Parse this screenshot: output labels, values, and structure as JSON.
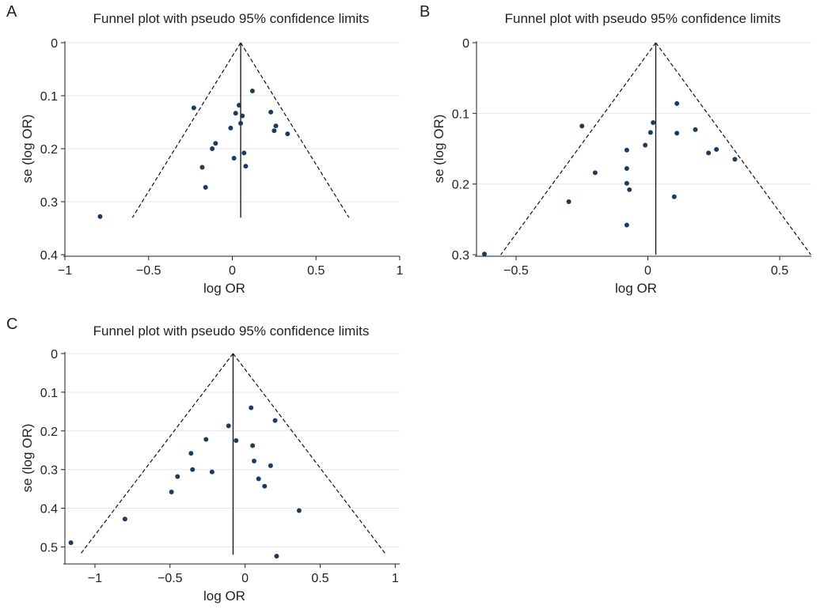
{
  "chart_data": [
    {
      "panel": "A",
      "type": "scatter",
      "title": "Funnel plot with pseudo 95% confidence limits",
      "xlabel": "log OR",
      "ylabel": "se (log OR)",
      "xlim": [
        -1,
        1
      ],
      "ylim": [
        0,
        0.4
      ],
      "yreversed": true,
      "xticks": [
        -1,
        -0.5,
        0,
        0.5,
        1
      ],
      "xtick_labels": [
        "−1",
        "−0.5",
        "0",
        "0.5",
        "1"
      ],
      "yticks": [
        0,
        0.1,
        0.2,
        0.3,
        0.4
      ],
      "ytick_labels": [
        "0",
        "0.1",
        "0.2",
        "0.3",
        "0.4"
      ],
      "grid": true,
      "pooled_estimate": 0.05,
      "se_max": 0.33,
      "points": [
        {
          "x": 0.12,
          "y": 0.091
        },
        {
          "x": -0.23,
          "y": 0.123
        },
        {
          "x": 0.04,
          "y": 0.118
        },
        {
          "x": 0.02,
          "y": 0.133
        },
        {
          "x": 0.23,
          "y": 0.131
        },
        {
          "x": 0.06,
          "y": 0.138
        },
        {
          "x": 0.05,
          "y": 0.152
        },
        {
          "x": 0.26,
          "y": 0.157
        },
        {
          "x": -0.01,
          "y": 0.161
        },
        {
          "x": 0.25,
          "y": 0.166
        },
        {
          "x": 0.33,
          "y": 0.172
        },
        {
          "x": -0.1,
          "y": 0.19
        },
        {
          "x": -0.12,
          "y": 0.2
        },
        {
          "x": 0.07,
          "y": 0.208
        },
        {
          "x": 0.01,
          "y": 0.218
        },
        {
          "x": -0.18,
          "y": 0.235
        },
        {
          "x": 0.08,
          "y": 0.233
        },
        {
          "x": -0.16,
          "y": 0.273
        },
        {
          "x": -0.79,
          "y": 0.328
        }
      ]
    },
    {
      "panel": "B",
      "type": "scatter",
      "title": "Funnel plot with pseudo 95% confidence limits",
      "xlabel": "log OR",
      "ylabel": "se (log OR)",
      "xlim": [
        -0.65,
        0.62
      ],
      "ylim": [
        0,
        0.3
      ],
      "yreversed": true,
      "xticks": [
        -0.5,
        0,
        0.5
      ],
      "xtick_labels": [
        "−0.5",
        "0",
        "0.5"
      ],
      "yticks": [
        0,
        0.1,
        0.2,
        0.3
      ],
      "ytick_labels": [
        "0",
        "0.1",
        "0.2",
        "0.3"
      ],
      "grid": true,
      "pooled_estimate": 0.03,
      "se_max": 0.3,
      "points": [
        {
          "x": 0.11,
          "y": 0.086
        },
        {
          "x": 0.02,
          "y": 0.113
        },
        {
          "x": -0.25,
          "y": 0.118
        },
        {
          "x": 0.18,
          "y": 0.123
        },
        {
          "x": 0.01,
          "y": 0.127
        },
        {
          "x": 0.11,
          "y": 0.128
        },
        {
          "x": -0.01,
          "y": 0.145
        },
        {
          "x": -0.08,
          "y": 0.152
        },
        {
          "x": 0.26,
          "y": 0.151
        },
        {
          "x": 0.23,
          "y": 0.156
        },
        {
          "x": 0.33,
          "y": 0.165
        },
        {
          "x": -0.08,
          "y": 0.178
        },
        {
          "x": -0.2,
          "y": 0.184
        },
        {
          "x": -0.08,
          "y": 0.199
        },
        {
          "x": -0.07,
          "y": 0.208
        },
        {
          "x": 0.1,
          "y": 0.218
        },
        {
          "x": -0.3,
          "y": 0.225
        },
        {
          "x": -0.08,
          "y": 0.258
        },
        {
          "x": -0.62,
          "y": 0.299
        }
      ]
    },
    {
      "panel": "C",
      "type": "scatter",
      "title": "Funnel plot with pseudo 95% confidence limits",
      "xlabel": "log OR",
      "ylabel": "se (log OR)",
      "xlim": [
        -1.2,
        1.03
      ],
      "ylim": [
        0,
        0.54
      ],
      "yreversed": true,
      "xticks": [
        -1,
        -0.5,
        0,
        0.5,
        1
      ],
      "xtick_labels": [
        "−1",
        "−0.5",
        "0",
        "0.5",
        "1"
      ],
      "yticks": [
        0,
        0.1,
        0.2,
        0.3,
        0.4,
        0.5
      ],
      "ytick_labels": [
        "0",
        "0.1",
        "0.2",
        "0.3",
        "0.4",
        "0.5"
      ],
      "grid": true,
      "pooled_estimate": -0.08,
      "se_max": 0.52,
      "points": [
        {
          "x": 0.04,
          "y": 0.14
        },
        {
          "x": 0.2,
          "y": 0.173
        },
        {
          "x": -0.11,
          "y": 0.187
        },
        {
          "x": -0.26,
          "y": 0.222
        },
        {
          "x": -0.06,
          "y": 0.225
        },
        {
          "x": 0.05,
          "y": 0.238
        },
        {
          "x": -0.36,
          "y": 0.258
        },
        {
          "x": 0.06,
          "y": 0.278
        },
        {
          "x": 0.17,
          "y": 0.29
        },
        {
          "x": -0.35,
          "y": 0.3
        },
        {
          "x": -0.22,
          "y": 0.306
        },
        {
          "x": -0.45,
          "y": 0.318
        },
        {
          "x": 0.09,
          "y": 0.324
        },
        {
          "x": 0.13,
          "y": 0.343
        },
        {
          "x": -0.49,
          "y": 0.358
        },
        {
          "x": 0.36,
          "y": 0.406
        },
        {
          "x": -0.8,
          "y": 0.428
        },
        {
          "x": -1.16,
          "y": 0.489
        },
        {
          "x": 0.21,
          "y": 0.524
        }
      ]
    }
  ],
  "style": {
    "point_color": "#1f3b5c",
    "grid_color": "#e6e6e6",
    "axis_color": "#222222"
  }
}
